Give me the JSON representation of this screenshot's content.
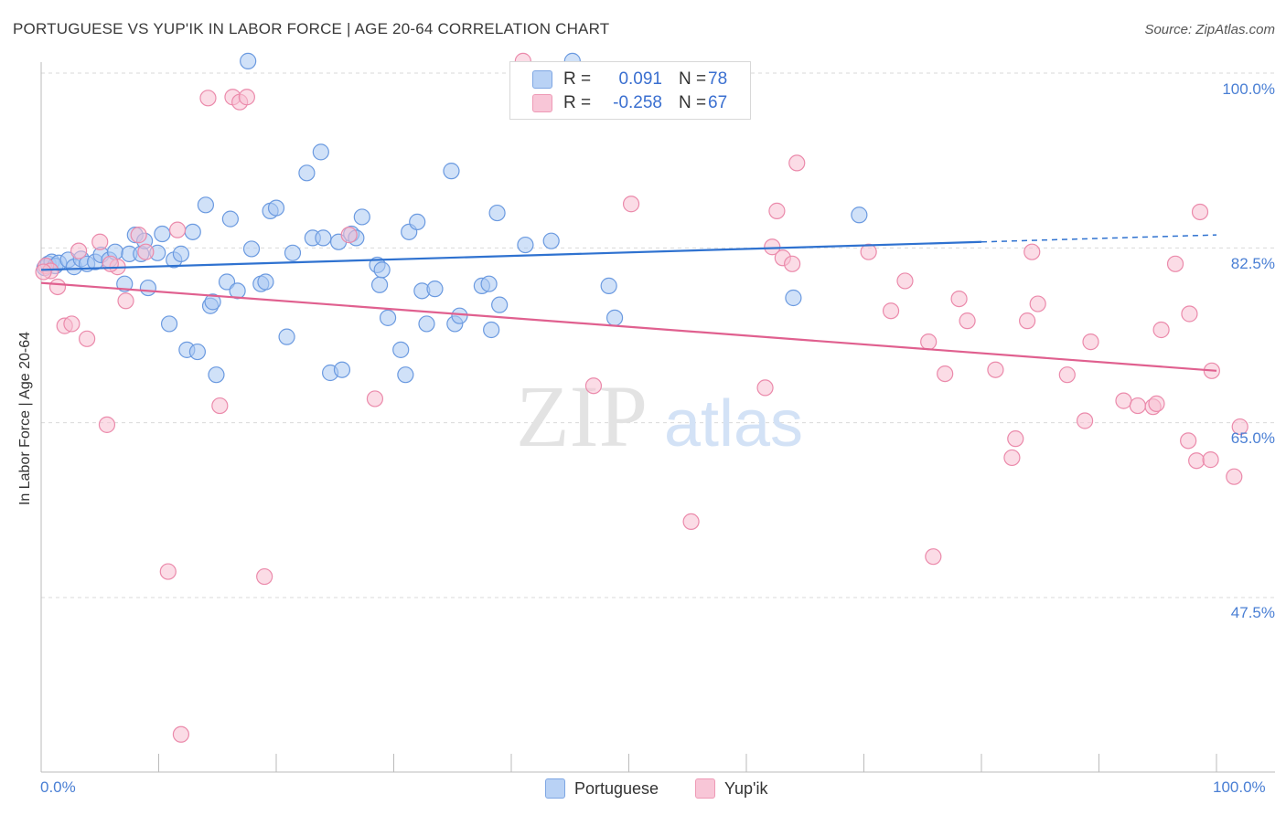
{
  "title": "PORTUGUESE VS YUP'IK IN LABOR FORCE | AGE 20-64 CORRELATION CHART",
  "source": "Source: ZipAtlas.com",
  "watermark": {
    "zip": "ZIP",
    "atlas": "atlas"
  },
  "legend": {
    "r_label": "R =",
    "n_label": "N =",
    "portuguese": {
      "r": "0.091",
      "n": "78"
    },
    "yupik": {
      "r": "-0.258",
      "n": "67"
    }
  },
  "colors": {
    "portuguese_fill": "#aac8f2",
    "portuguese_stroke": "#6b9ae0",
    "portuguese_line": "#2f72d0",
    "yupik_fill": "#f7c0d2",
    "yupik_stroke": "#eb8aab",
    "yupik_line": "#e0608f",
    "axis_text": "#4a7fd4",
    "grid": "#d9d9d9"
  },
  "chart_data": {
    "type": "scatter",
    "title": "PORTUGUESE VS YUP'IK IN LABOR FORCE | AGE 20-64 CORRELATION CHART",
    "xlabel": "",
    "ylabel": "In Labor Force | Age 20-64",
    "x_tick_labels": [
      "0.0%",
      "100.0%"
    ],
    "y_tick_labels": [
      "100.0%",
      "82.5%",
      "65.0%",
      "47.5%"
    ],
    "y_ticks": [
      100.0,
      82.5,
      65.0,
      47.5
    ],
    "xlim": [
      0,
      100
    ],
    "ylim": [
      30.0,
      101.5
    ],
    "grid": true,
    "legend_position": "top-center",
    "series": [
      {
        "name": "Portuguese",
        "r": 0.091,
        "n": 78,
        "trend": {
          "x0": 0,
          "y0": 80.3,
          "x1": 80,
          "y1": 83.1,
          "dashed_to_x": 100,
          "dashed_to_y": 83.8
        },
        "points": [
          [
            0.3,
            80.5
          ],
          [
            0.6,
            80.9
          ],
          [
            0.9,
            81.1
          ],
          [
            1.2,
            80.7
          ],
          [
            1.5,
            81.0
          ],
          [
            2.3,
            81.3
          ],
          [
            2.8,
            80.6
          ],
          [
            3.4,
            81.4
          ],
          [
            3.9,
            80.9
          ],
          [
            4.6,
            81.1
          ],
          [
            5.1,
            81.8
          ],
          [
            5.8,
            81.3
          ],
          [
            6.3,
            82.1
          ],
          [
            7.1,
            78.9
          ],
          [
            7.5,
            81.9
          ],
          [
            8.0,
            83.8
          ],
          [
            8.5,
            81.9
          ],
          [
            8.8,
            83.2
          ],
          [
            9.1,
            78.5
          ],
          [
            9.9,
            82.0
          ],
          [
            10.3,
            83.9
          ],
          [
            10.9,
            74.9
          ],
          [
            11.3,
            81.3
          ],
          [
            11.9,
            81.9
          ],
          [
            12.4,
            72.3
          ],
          [
            12.9,
            84.1
          ],
          [
            13.3,
            72.1
          ],
          [
            14.0,
            86.8
          ],
          [
            14.4,
            76.7
          ],
          [
            14.6,
            77.1
          ],
          [
            14.9,
            69.8
          ],
          [
            15.8,
            79.1
          ],
          [
            16.1,
            85.4
          ],
          [
            16.7,
            78.2
          ],
          [
            17.9,
            82.4
          ],
          [
            18.7,
            78.9
          ],
          [
            19.1,
            79.1
          ],
          [
            19.5,
            86.2
          ],
          [
            20.0,
            86.5
          ],
          [
            20.9,
            73.6
          ],
          [
            21.4,
            82.0
          ],
          [
            22.6,
            90.0
          ],
          [
            23.1,
            83.5
          ],
          [
            23.8,
            92.1
          ],
          [
            24.0,
            83.5
          ],
          [
            24.6,
            70.0
          ],
          [
            25.3,
            83.1
          ],
          [
            25.6,
            70.3
          ],
          [
            26.4,
            83.9
          ],
          [
            26.8,
            83.5
          ],
          [
            27.3,
            85.6
          ],
          [
            28.6,
            80.8
          ],
          [
            28.8,
            78.8
          ],
          [
            29.0,
            80.3
          ],
          [
            29.5,
            75.5
          ],
          [
            30.6,
            72.3
          ],
          [
            31.0,
            69.8
          ],
          [
            31.3,
            84.1
          ],
          [
            32.0,
            85.1
          ],
          [
            32.4,
            78.2
          ],
          [
            32.8,
            74.9
          ],
          [
            33.5,
            78.4
          ],
          [
            34.9,
            90.2
          ],
          [
            35.2,
            74.9
          ],
          [
            35.6,
            75.7
          ],
          [
            37.5,
            78.7
          ],
          [
            38.1,
            78.9
          ],
          [
            38.3,
            74.3
          ],
          [
            38.8,
            86.0
          ],
          [
            39.0,
            76.8
          ],
          [
            41.2,
            82.8
          ],
          [
            43.4,
            83.2
          ],
          [
            48.3,
            78.7
          ],
          [
            48.8,
            75.5
          ],
          [
            64.0,
            77.5
          ],
          [
            69.6,
            85.8
          ],
          [
            17.6,
            101.2
          ],
          [
            45.2,
            101.2
          ]
        ]
      },
      {
        "name": "Yup'ik",
        "r": -0.258,
        "n": 67,
        "trend": {
          "x0": 0,
          "y0": 79.0,
          "x1": 100,
          "y1": 70.2
        },
        "points": [
          [
            0.4,
            80.7
          ],
          [
            0.8,
            80.2
          ],
          [
            1.4,
            78.6
          ],
          [
            2.0,
            74.7
          ],
          [
            2.6,
            74.9
          ],
          [
            3.2,
            82.2
          ],
          [
            3.9,
            73.4
          ],
          [
            5.0,
            83.1
          ],
          [
            5.6,
            64.8
          ],
          [
            6.5,
            80.6
          ],
          [
            7.2,
            77.2
          ],
          [
            8.3,
            83.8
          ],
          [
            8.9,
            82.1
          ],
          [
            10.8,
            50.1
          ],
          [
            11.6,
            84.3
          ],
          [
            11.9,
            33.8
          ],
          [
            14.2,
            97.5
          ],
          [
            15.2,
            66.7
          ],
          [
            16.3,
            97.6
          ],
          [
            16.9,
            97.1
          ],
          [
            17.5,
            97.6
          ],
          [
            19.0,
            49.6
          ],
          [
            26.2,
            83.8
          ],
          [
            28.4,
            67.4
          ],
          [
            41.0,
            101.2
          ],
          [
            47.0,
            68.7
          ],
          [
            50.2,
            86.9
          ],
          [
            55.3,
            55.1
          ],
          [
            61.6,
            68.5
          ],
          [
            62.2,
            82.6
          ],
          [
            62.6,
            86.2
          ],
          [
            63.1,
            81.5
          ],
          [
            64.3,
            91.0
          ],
          [
            63.9,
            80.9
          ],
          [
            70.4,
            82.1
          ],
          [
            72.3,
            76.2
          ],
          [
            73.5,
            79.2
          ],
          [
            75.5,
            73.1
          ],
          [
            75.9,
            51.6
          ],
          [
            76.9,
            69.9
          ],
          [
            78.1,
            77.4
          ],
          [
            78.8,
            75.2
          ],
          [
            81.2,
            70.3
          ],
          [
            82.6,
            61.5
          ],
          [
            82.9,
            63.4
          ],
          [
            83.9,
            75.2
          ],
          [
            84.3,
            82.1
          ],
          [
            84.8,
            76.9
          ],
          [
            87.3,
            69.8
          ],
          [
            88.8,
            65.2
          ],
          [
            89.3,
            73.1
          ],
          [
            92.1,
            67.2
          ],
          [
            93.3,
            66.7
          ],
          [
            94.6,
            66.6
          ],
          [
            94.9,
            66.9
          ],
          [
            95.3,
            74.3
          ],
          [
            96.5,
            80.9
          ],
          [
            97.6,
            63.2
          ],
          [
            97.7,
            75.9
          ],
          [
            98.3,
            61.2
          ],
          [
            98.6,
            86.1
          ],
          [
            99.5,
            61.3
          ],
          [
            99.6,
            70.2
          ],
          [
            101.5,
            59.6
          ],
          [
            102.0,
            64.6
          ],
          [
            0.2,
            80.1
          ],
          [
            5.9,
            80.9
          ]
        ]
      }
    ]
  }
}
